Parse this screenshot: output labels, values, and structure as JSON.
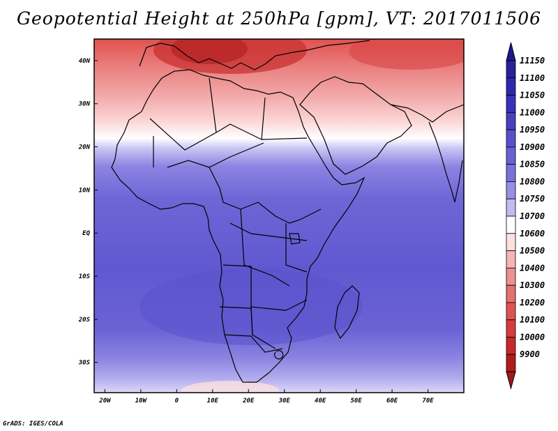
{
  "title": "Geopotential Height at 250hPa [gpm], VT: 2017011506",
  "credit": "GrADS: IGES/COLA",
  "map": {
    "lon_range": [
      -23,
      80
    ],
    "lat_range": [
      -37,
      45
    ],
    "lon_ticks": [
      {
        "value": -20,
        "label": "20W"
      },
      {
        "value": -10,
        "label": "10W"
      },
      {
        "value": 0,
        "label": "0"
      },
      {
        "value": 10,
        "label": "10E"
      },
      {
        "value": 20,
        "label": "20E"
      },
      {
        "value": 30,
        "label": "30E"
      },
      {
        "value": 40,
        "label": "40E"
      },
      {
        "value": 50,
        "label": "50E"
      },
      {
        "value": 60,
        "label": "60E"
      },
      {
        "value": 70,
        "label": "70E"
      }
    ],
    "lat_ticks": [
      {
        "value": 40,
        "label": "40N"
      },
      {
        "value": 30,
        "label": "30N"
      },
      {
        "value": 20,
        "label": "20N"
      },
      {
        "value": 10,
        "label": "10N"
      },
      {
        "value": 0,
        "label": "EQ"
      },
      {
        "value": -10,
        "label": "10S"
      },
      {
        "value": -20,
        "label": "20S"
      },
      {
        "value": -30,
        "label": "30S"
      }
    ]
  },
  "colorbar": {
    "levels": [
      {
        "label": "11150",
        "color": "#28209c"
      },
      {
        "label": "11100",
        "color": "#3028ac"
      },
      {
        "label": "11050",
        "color": "#3a32b8"
      },
      {
        "label": "11000",
        "color": "#4840c0"
      },
      {
        "label": "10950",
        "color": "#5850cc"
      },
      {
        "label": "10900",
        "color": "#6860d4"
      },
      {
        "label": "10850",
        "color": "#7a72dc"
      },
      {
        "label": "10800",
        "color": "#9890e6"
      },
      {
        "label": "10750",
        "color": "#c0bcf2"
      },
      {
        "label": "10700",
        "color": "#ffffff"
      },
      {
        "label": "10600",
        "color": "#fde0e0"
      },
      {
        "label": "10500",
        "color": "#f6b4b4"
      },
      {
        "label": "10400",
        "color": "#ec9090"
      },
      {
        "label": "10300",
        "color": "#e47070"
      },
      {
        "label": "10200",
        "color": "#de5454"
      },
      {
        "label": "10100",
        "color": "#d83c3c"
      },
      {
        "label": "10000",
        "color": "#c82828"
      },
      {
        "label": "9900",
        "color": "#b01c1c"
      }
    ],
    "top_color": "#1c1890",
    "bottom_color": "#a01818"
  }
}
